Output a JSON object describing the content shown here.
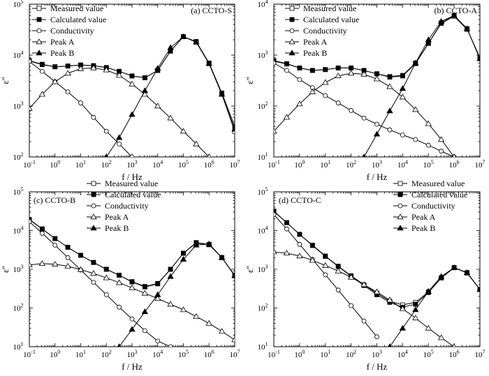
{
  "chart_data": [
    {
      "type": "line",
      "panel_label": "(a) CCTO-S",
      "xlabel": "f / Hz",
      "ylabel": "ε''",
      "x_scale": "log",
      "y_scale": "log",
      "xlim": [
        0.1,
        10000000
      ],
      "ylim": [
        100,
        100000
      ],
      "legend_position": "top-left",
      "series": [
        {
          "name": "Measured value",
          "marker": "open-square",
          "x": [
            0.1,
            0.316,
            1,
            3.16,
            10,
            31.6,
            100,
            316,
            1000,
            3160,
            10000,
            31600,
            100000,
            316000,
            1000000,
            3160000,
            10000000
          ],
          "y": [
            7800,
            6600,
            5900,
            6100,
            6400,
            6200,
            5700,
            4800,
            3900,
            3600,
            5000,
            12000,
            23000,
            18000,
            6800,
            1700,
            320
          ]
        },
        {
          "name": "Calculated value",
          "marker": "filled-square",
          "x": [
            0.1,
            0.316,
            1,
            3.16,
            10,
            31.6,
            100,
            316,
            1000,
            3160,
            10000,
            31600,
            100000,
            316000,
            1000000,
            3160000,
            10000000
          ],
          "y": [
            7700,
            6500,
            5900,
            6100,
            6400,
            6200,
            5700,
            4800,
            3900,
            3600,
            5000,
            12000,
            23000,
            18500,
            7000,
            1800,
            400
          ]
        },
        {
          "name": "Conductivity",
          "marker": "open-circle",
          "x": [
            0.1,
            0.316,
            1,
            3.16,
            10,
            31.6,
            100,
            316,
            1000
          ],
          "y": [
            7500,
            4800,
            3000,
            1900,
            1150,
            600,
            320,
            180,
            100
          ]
        },
        {
          "name": "Peak A",
          "marker": "open-triangle",
          "x": [
            0.1,
            0.316,
            1,
            3.16,
            10,
            31.6,
            100,
            316,
            1000,
            3160,
            10000,
            31600,
            100000,
            316000,
            1000000
          ],
          "y": [
            900,
            1700,
            3000,
            4400,
            5400,
            5600,
            5100,
            4000,
            2700,
            1700,
            1000,
            580,
            320,
            180,
            100
          ]
        },
        {
          "name": "Peak B",
          "marker": "filled-triangle",
          "x": [
            100,
            316,
            1000,
            3160,
            10000,
            31600,
            100000,
            316000,
            1000000,
            3160000,
            10000000
          ],
          "y": [
            100,
            240,
            680,
            2000,
            5500,
            14000,
            23000,
            18000,
            6800,
            1700,
            350
          ]
        }
      ]
    },
    {
      "type": "line",
      "panel_label": "(b) CCTO-A",
      "xlabel": "f / Hz",
      "ylabel": "ε''",
      "x_scale": "log",
      "y_scale": "log",
      "xlim": [
        0.1,
        10000000
      ],
      "ylim": [
        10,
        10000
      ],
      "legend_position": "top-left",
      "series": [
        {
          "name": "Measured value",
          "marker": "open-square",
          "x": [
            0.1,
            0.316,
            1,
            3.16,
            10,
            31.6,
            100,
            316,
            1000,
            3160,
            10000,
            31600,
            100000,
            316000,
            1000000,
            3160000,
            10000000
          ],
          "y": [
            780,
            680,
            560,
            500,
            520,
            560,
            560,
            500,
            430,
            380,
            400,
            700,
            1700,
            4200,
            5800,
            3200,
            900
          ]
        },
        {
          "name": "Calculated value",
          "marker": "filled-square",
          "x": [
            0.1,
            0.316,
            1,
            3.16,
            10,
            31.6,
            100,
            316,
            1000,
            3160,
            10000,
            31600,
            100000,
            316000,
            1000000,
            3160000,
            10000000
          ],
          "y": [
            760,
            670,
            560,
            500,
            520,
            560,
            560,
            500,
            430,
            370,
            390,
            680,
            1700,
            4300,
            6000,
            3300,
            850
          ]
        },
        {
          "name": "Conductivity",
          "marker": "open-circle",
          "x": [
            0.1,
            0.316,
            1,
            3.16,
            10,
            31.6,
            100,
            316,
            1000,
            3160,
            10000,
            31600,
            100000,
            316000,
            1000000
          ],
          "y": [
            700,
            500,
            330,
            230,
            160,
            115,
            82,
            58,
            44,
            34,
            27,
            22,
            17,
            13,
            10
          ]
        },
        {
          "name": "Peak A",
          "marker": "open-triangle",
          "x": [
            0.1,
            0.316,
            1,
            3.16,
            10,
            31.6,
            100,
            316,
            1000,
            3160,
            10000,
            31600,
            100000,
            316000,
            1000000
          ],
          "y": [
            32,
            60,
            110,
            190,
            290,
            390,
            440,
            420,
            340,
            240,
            150,
            85,
            45,
            22,
            10
          ]
        },
        {
          "name": "Peak B",
          "marker": "filled-triangle",
          "x": [
            316,
            1000,
            3160,
            10000,
            31600,
            100000,
            316000,
            1000000,
            3160000,
            10000000
          ],
          "y": [
            10,
            28,
            80,
            220,
            700,
            2000,
            4600,
            6000,
            3300,
            850
          ]
        }
      ]
    },
    {
      "type": "line",
      "panel_label": "(c) CCTO-B",
      "xlabel": "f / Hz",
      "ylabel": "ε''",
      "x_scale": "log",
      "y_scale": "log",
      "xlim": [
        0.1,
        10000000
      ],
      "ylim": [
        10,
        100000
      ],
      "legend_position": "top-right",
      "series": [
        {
          "name": "Measured value",
          "marker": "open-square",
          "x": [
            0.1,
            0.316,
            1,
            3.16,
            10,
            31.6,
            100,
            316,
            1000,
            3160,
            10000,
            31600,
            100000,
            316000,
            1000000,
            3160000,
            10000000
          ],
          "y": [
            19000,
            11000,
            6200,
            3700,
            2300,
            1500,
            1000,
            700,
            480,
            360,
            430,
            1000,
            2600,
            4800,
            4300,
            2000,
            700
          ]
        },
        {
          "name": "Calculated value",
          "marker": "filled-square",
          "x": [
            0.1,
            0.316,
            1,
            3.16,
            10,
            31.6,
            100,
            316,
            1000,
            3160,
            10000,
            31600,
            100000,
            316000,
            1000000,
            3160000,
            10000000
          ],
          "y": [
            19500,
            11000,
            6200,
            3700,
            2300,
            1500,
            1000,
            700,
            470,
            350,
            420,
            1000,
            2600,
            4900,
            4400,
            2000,
            680
          ]
        },
        {
          "name": "Conductivity",
          "marker": "open-circle",
          "x": [
            0.1,
            0.316,
            1,
            3.16,
            10,
            31.6,
            100,
            316,
            1000,
            3160,
            10000,
            31600
          ],
          "y": [
            17000,
            8500,
            4200,
            2000,
            960,
            460,
            220,
            105,
            52,
            26,
            14,
            10
          ]
        },
        {
          "name": "Peak A",
          "marker": "open-triangle",
          "x": [
            0.1,
            0.316,
            1,
            3.16,
            10,
            31.6,
            100,
            316,
            1000,
            3160,
            10000,
            31600,
            100000,
            316000,
            1000000,
            3160000,
            10000000
          ],
          "y": [
            1300,
            1400,
            1350,
            1200,
            980,
            780,
            600,
            450,
            330,
            240,
            175,
            125,
            90,
            60,
            40,
            25,
            15
          ]
        },
        {
          "name": "Peak B",
          "marker": "filled-triangle",
          "x": [
            316,
            1000,
            3160,
            10000,
            31600,
            100000,
            316000,
            1000000,
            3160000,
            10000000
          ],
          "y": [
            10,
            28,
            80,
            220,
            650,
            1800,
            4200,
            4500,
            2000,
            680
          ]
        }
      ]
    },
    {
      "type": "line",
      "panel_label": "(d) CCTO-C",
      "xlabel": "f / Hz",
      "ylabel": "ε''",
      "x_scale": "log",
      "y_scale": "log",
      "xlim": [
        0.1,
        10000000
      ],
      "ylim": [
        10,
        100000
      ],
      "legend_position": "top-right",
      "series": [
        {
          "name": "Measured value",
          "marker": "open-square",
          "x": [
            0.1,
            0.316,
            1,
            3.16,
            10,
            31.6,
            100,
            316,
            1000,
            3160,
            10000,
            31600,
            100000,
            316000,
            1000000,
            3160000,
            10000000
          ],
          "y": [
            31000,
            16000,
            8000,
            4200,
            2200,
            1200,
            680,
            400,
            240,
            150,
            120,
            140,
            260,
            600,
            1100,
            800,
            300
          ]
        },
        {
          "name": "Calculated value",
          "marker": "filled-square",
          "x": [
            0.1,
            0.316,
            1,
            3.16,
            10,
            31.6,
            100,
            316,
            1000,
            3160,
            10000,
            31600,
            100000,
            316000,
            1000000,
            3160000,
            10000000
          ],
          "y": [
            32000,
            16000,
            8000,
            4100,
            2150,
            1180,
            660,
            380,
            220,
            140,
            105,
            125,
            250,
            600,
            1100,
            820,
            300
          ]
        },
        {
          "name": "Conductivity",
          "marker": "open-circle",
          "x": [
            0.1,
            0.316,
            1,
            3.16,
            10,
            31.6,
            100,
            316,
            1000
          ],
          "y": [
            26000,
            11000,
            4400,
            1800,
            720,
            290,
            115,
            46,
            18
          ]
        },
        {
          "name": "Peak A",
          "marker": "open-triangle",
          "x": [
            0.1,
            0.316,
            1,
            3.16,
            10,
            31.6,
            100,
            316,
            1000,
            3160,
            10000,
            31600,
            100000,
            316000,
            1000000
          ],
          "y": [
            2800,
            2600,
            2200,
            1700,
            1250,
            900,
            620,
            400,
            260,
            160,
            95,
            55,
            30,
            17,
            10
          ]
        },
        {
          "name": "Peak B",
          "marker": "filled-triangle",
          "x": [
            3160,
            10000,
            31600,
            100000,
            316000,
            1000000,
            3160000,
            10000000
          ],
          "y": [
            10,
            30,
            90,
            270,
            650,
            1100,
            820,
            300
          ]
        }
      ]
    }
  ]
}
